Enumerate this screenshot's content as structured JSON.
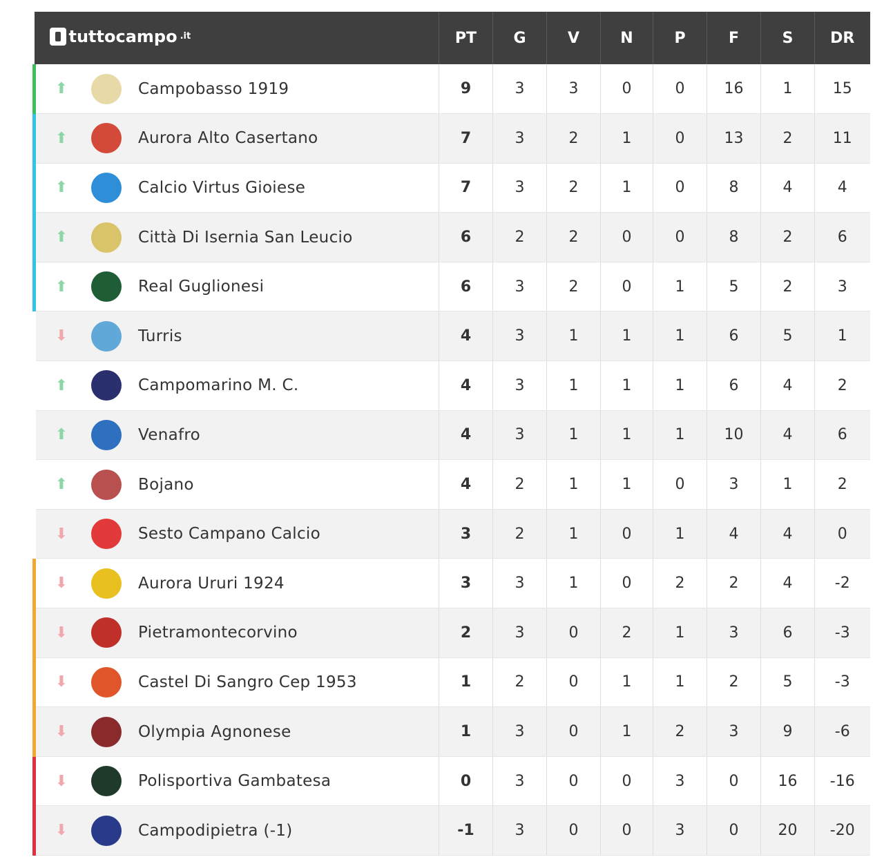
{
  "header": {
    "brand_name": "tuttocampo",
    "brand_tld": ".it",
    "columns": [
      "PT",
      "G",
      "V",
      "N",
      "P",
      "F",
      "S",
      "DR"
    ]
  },
  "rows": [
    {
      "team": "Campobasso 1919",
      "trend": "up",
      "zone_color": "#3cbf5a",
      "crest_color": "#e8d9a8",
      "pt": "9",
      "g": "3",
      "v": "3",
      "n": "0",
      "p": "0",
      "f": "16",
      "s": "1",
      "dr": "15"
    },
    {
      "team": "Aurora Alto Casertano",
      "trend": "up",
      "zone_color": "#33c3e6",
      "crest_color": "#d44a3a",
      "pt": "7",
      "g": "3",
      "v": "2",
      "n": "1",
      "p": "0",
      "f": "13",
      "s": "2",
      "dr": "11"
    },
    {
      "team": "Calcio Virtus Gioiese",
      "trend": "up",
      "zone_color": "#33c3e6",
      "crest_color": "#2e8fd8",
      "pt": "7",
      "g": "3",
      "v": "2",
      "n": "1",
      "p": "0",
      "f": "8",
      "s": "4",
      "dr": "4"
    },
    {
      "team": "Città Di Isernia San Leucio",
      "trend": "up",
      "zone_color": "#33c3e6",
      "crest_color": "#d9c46a",
      "pt": "6",
      "g": "2",
      "v": "2",
      "n": "0",
      "p": "0",
      "f": "8",
      "s": "2",
      "dr": "6"
    },
    {
      "team": "Real Guglionesi",
      "trend": "up",
      "zone_color": "#33c3e6",
      "crest_color": "#1f5d36",
      "pt": "6",
      "g": "3",
      "v": "2",
      "n": "0",
      "p": "1",
      "f": "5",
      "s": "2",
      "dr": "3"
    },
    {
      "team": "Turris",
      "trend": "down",
      "zone_color": "transparent",
      "crest_color": "#5fa8d8",
      "pt": "4",
      "g": "3",
      "v": "1",
      "n": "1",
      "p": "1",
      "f": "6",
      "s": "5",
      "dr": "1"
    },
    {
      "team": "Campomarino M. C.",
      "trend": "up",
      "zone_color": "transparent",
      "crest_color": "#2a2f6e",
      "pt": "4",
      "g": "3",
      "v": "1",
      "n": "1",
      "p": "1",
      "f": "6",
      "s": "4",
      "dr": "2"
    },
    {
      "team": "Venafro",
      "trend": "up",
      "zone_color": "transparent",
      "crest_color": "#2f6fc0",
      "pt": "4",
      "g": "3",
      "v": "1",
      "n": "1",
      "p": "1",
      "f": "10",
      "s": "4",
      "dr": "6"
    },
    {
      "team": "Bojano",
      "trend": "up",
      "zone_color": "transparent",
      "crest_color": "#b85050",
      "pt": "4",
      "g": "2",
      "v": "1",
      "n": "1",
      "p": "0",
      "f": "3",
      "s": "1",
      "dr": "2"
    },
    {
      "team": "Sesto Campano Calcio",
      "trend": "down",
      "zone_color": "transparent",
      "crest_color": "#e23a3a",
      "pt": "3",
      "g": "2",
      "v": "1",
      "n": "0",
      "p": "1",
      "f": "4",
      "s": "4",
      "dr": "0"
    },
    {
      "team": "Aurora Ururi 1924",
      "trend": "down",
      "zone_color": "#f0a830",
      "crest_color": "#e8c020",
      "pt": "3",
      "g": "3",
      "v": "1",
      "n": "0",
      "p": "2",
      "f": "2",
      "s": "4",
      "dr": "-2"
    },
    {
      "team": "Pietramontecorvino",
      "trend": "down",
      "zone_color": "#f0a830",
      "crest_color": "#c0302a",
      "pt": "2",
      "g": "3",
      "v": "0",
      "n": "2",
      "p": "1",
      "f": "3",
      "s": "6",
      "dr": "-3"
    },
    {
      "team": "Castel Di Sangro Cep 1953",
      "trend": "down",
      "zone_color": "#f0a830",
      "crest_color": "#e0562a",
      "pt": "1",
      "g": "2",
      "v": "0",
      "n": "1",
      "p": "1",
      "f": "2",
      "s": "5",
      "dr": "-3"
    },
    {
      "team": "Olympia Agnonese",
      "trend": "down",
      "zone_color": "#f0a830",
      "crest_color": "#8a2a2a",
      "pt": "1",
      "g": "3",
      "v": "0",
      "n": "1",
      "p": "2",
      "f": "3",
      "s": "9",
      "dr": "-6"
    },
    {
      "team": "Polisportiva Gambatesa",
      "trend": "down",
      "zone_color": "#e0323c",
      "crest_color": "#1f3a2a",
      "pt": "0",
      "g": "3",
      "v": "0",
      "n": "0",
      "p": "3",
      "f": "0",
      "s": "16",
      "dr": "-16"
    },
    {
      "team": "Campodipietra (-1)",
      "trend": "down",
      "zone_color": "#e0323c",
      "crest_color": "#2a3a8a",
      "pt": "-1",
      "g": "3",
      "v": "0",
      "n": "0",
      "p": "3",
      "f": "0",
      "s": "20",
      "dr": "-20"
    }
  ],
  "icons": {
    "up": "arrow-up-icon",
    "down": "arrow-down-icon",
    "crest": "team-crest-icon"
  }
}
